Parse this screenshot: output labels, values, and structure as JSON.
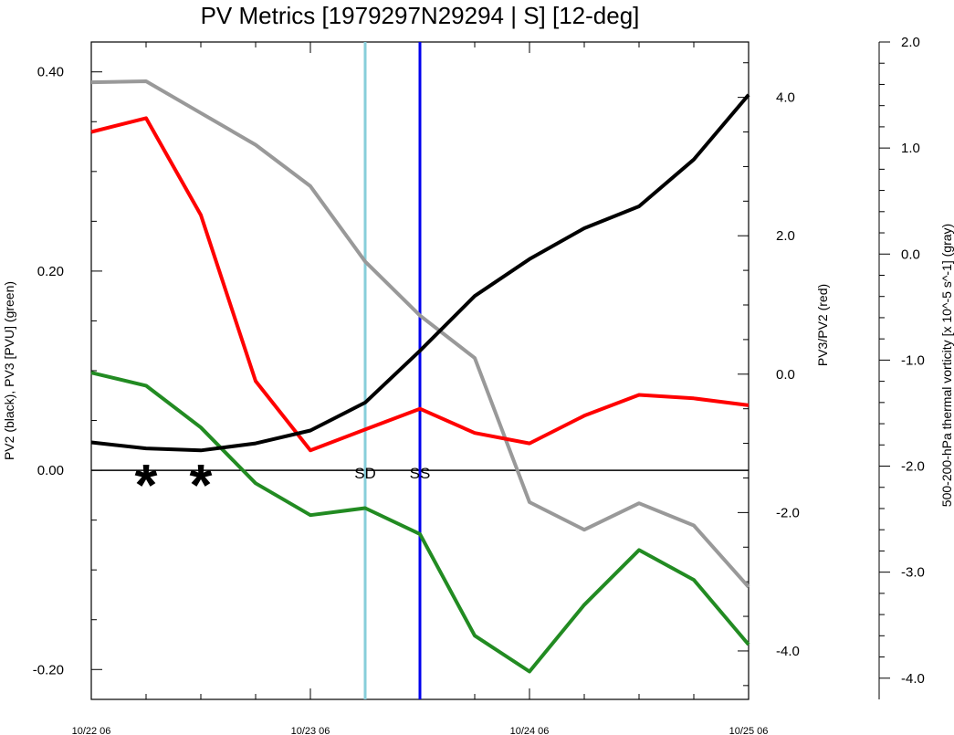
{
  "chart_data": {
    "type": "line",
    "title": "PV Metrics [1979297N29294 | S] [12-deg]",
    "x": [
      "10/22 06",
      "10/22 12",
      "10/22 18",
      "10/23 00",
      "10/23 06",
      "10/23 12",
      "10/23 18",
      "10/24 00",
      "10/24 06",
      "10/24 12",
      "10/24 18",
      "10/25 00",
      "10/25 06"
    ],
    "x_tick_labels": [
      "10/22 06",
      "10/23 06",
      "10/24 06",
      "10/25 06"
    ],
    "ylabel_left": "PV2 (black), PV3 [PVU] (green)",
    "ylabel_right": "PV3/PV2 (red)",
    "ylabel_far_right": "500-200-hPa thermal vorticity [x 10^-5 s^-1] (gray)",
    "ylim_left": [
      -0.23,
      0.43
    ],
    "ylim_right": [
      -4.7,
      4.8
    ],
    "ylim_far_right": [
      -4.2,
      2.0
    ],
    "left_ticks": [
      "0.40",
      "0.20",
      "0.00",
      "-0.20"
    ],
    "right_ticks": [
      "4.0",
      "2.0",
      "0.0",
      "-2.0",
      "-4.0"
    ],
    "far_right_ticks": [
      "2.0",
      "1.0",
      "0.0",
      "-1.0",
      "-2.0",
      "-3.0",
      "-4.0"
    ],
    "series": [
      {
        "name": "PV2",
        "axis": "left",
        "color": "#000000",
        "values": [
          0.028,
          0.022,
          0.02,
          0.027,
          0.04,
          0.068,
          0.12,
          0.175,
          0.212,
          0.243,
          0.265,
          0.312,
          0.377
        ]
      },
      {
        "name": "PV3",
        "axis": "left",
        "color": "#228B22",
        "values": [
          0.098,
          0.085,
          0.043,
          -0.013,
          -0.045,
          -0.038,
          -0.064,
          -0.166,
          -0.202,
          -0.135,
          -0.08,
          -0.11,
          -0.175
        ]
      },
      {
        "name": "PV3/PV2",
        "axis": "right",
        "color": "#ff0000",
        "values": [
          3.5,
          3.7,
          2.3,
          -0.1,
          -1.1,
          -0.8,
          -0.5,
          -0.85,
          -1.0,
          -0.6,
          -0.3,
          -0.35,
          -0.45
        ]
      },
      {
        "name": "500-200-hPa thermal vorticity",
        "axis": "far_right",
        "color": "#999999",
        "values": [
          1.62,
          1.63,
          1.33,
          1.03,
          0.64,
          -0.07,
          -0.58,
          -0.98,
          -2.34,
          -2.6,
          -2.35,
          -2.56,
          -3.14
        ]
      }
    ],
    "vertical_markers": [
      {
        "label": "SD",
        "x": "10/23 12",
        "color": "#87ceda"
      },
      {
        "label": "SS",
        "x": "10/23 18",
        "color": "#0000ee"
      }
    ],
    "stars": [
      "10/22 12",
      "10/22 18"
    ],
    "grid": false,
    "legend": "none"
  }
}
